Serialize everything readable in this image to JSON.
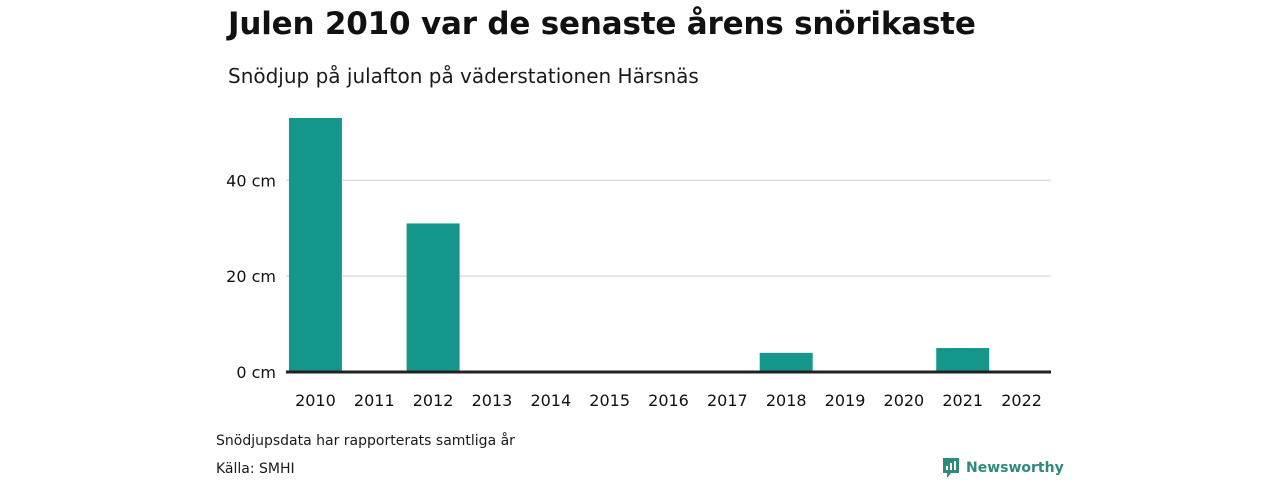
{
  "header": {
    "title": "Julen 2010 var de senaste årens snörikaste",
    "subtitle": "Snödjup på julafton på väderstationen Härsnäs"
  },
  "footer": {
    "note": "Snödjupsdata har rapporterats samtliga år",
    "source": "Källa: SMHI",
    "brand": "Newsworthy",
    "brand_icon": "newsworthy-logo-icon"
  },
  "colors": {
    "bar": "#14978a",
    "grid": "#dddddd",
    "baseline": "#222222",
    "brand": "#2e8b7a"
  },
  "chart_data": {
    "type": "bar",
    "title": "Julen 2010 var de senaste årens snörikaste",
    "subtitle": "Snödjup på julafton på väderstationen Härsnäs",
    "categories": [
      "2010",
      "2011",
      "2012",
      "2013",
      "2014",
      "2015",
      "2016",
      "2017",
      "2018",
      "2019",
      "2020",
      "2021",
      "2022"
    ],
    "values": [
      53,
      0,
      31,
      0,
      0,
      0,
      0,
      0,
      4,
      0,
      0,
      5,
      0
    ],
    "unit": "cm",
    "yticks": [
      0,
      20,
      40
    ],
    "ytick_labels": [
      "0 cm",
      "20 cm",
      "40 cm"
    ],
    "ylim": [
      0,
      53
    ],
    "grid": true,
    "legend": "none"
  }
}
